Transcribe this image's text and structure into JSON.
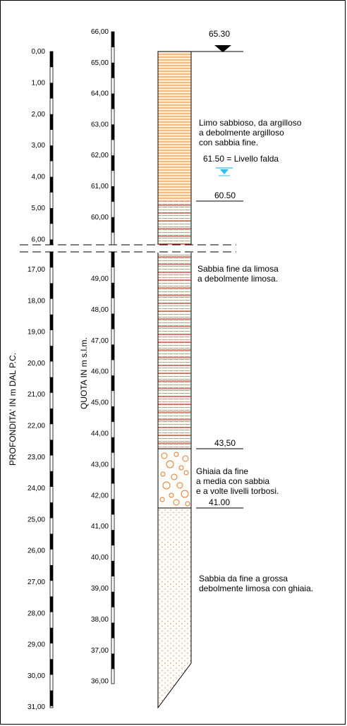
{
  "axes": {
    "depth_title": "PROFONDITA' IN m DAL P.C.",
    "elev_title": "QUOTA IN m s.l.m.",
    "depth_upper": [
      "0,00",
      "1,00",
      "2,00",
      "3,00",
      "4,00",
      "5,00",
      "6,00"
    ],
    "depth_lower": [
      "17,00",
      "18,00",
      "19,00",
      "20,00",
      "21,00",
      "22,00",
      "23,00",
      "24,00",
      "25,00",
      "26,00",
      "27,00",
      "28,00",
      "29,00",
      "30,00",
      "31,00"
    ],
    "elev_upper": [
      "66,00",
      "65,00",
      "64,00",
      "63,00",
      "62,00",
      "61,00",
      "60,00"
    ],
    "elev_lower": [
      "49,00",
      "48,00",
      "47,00",
      "46,00",
      "45,00",
      "44,00",
      "43,00",
      "42,00",
      "41,00",
      "40,00",
      "39,00",
      "38,00",
      "37,00",
      "36,00"
    ]
  },
  "levels": {
    "top": "65.30",
    "l1": "60.50",
    "l2": "43,50",
    "l3": "41.00"
  },
  "water_table": "61.50 = Livello falda",
  "layers": [
    {
      "lines": [
        "Limo sabbioso, da argilloso",
        "a debolmente argilloso",
        "con sabbia fine."
      ],
      "colors": {
        "stripe": "#e08a30",
        "fill": "#fdeed8"
      }
    },
    {
      "lines": [
        "Sabbia fine da limosa",
        "a debolmente limosa."
      ],
      "colors": {
        "stripe": "#cc2222"
      }
    },
    {
      "lines": [
        "Ghiaia da fine",
        "a media con sabbia",
        "e a volte livelli torbosi."
      ],
      "colors": {
        "circle": "#e07a30"
      }
    },
    {
      "lines": [
        "Sabbia da fine a grossa",
        "debolmente limosa con ghiaia."
      ],
      "colors": {
        "dot": "#d49060"
      }
    }
  ],
  "water_color": "#33bbee"
}
